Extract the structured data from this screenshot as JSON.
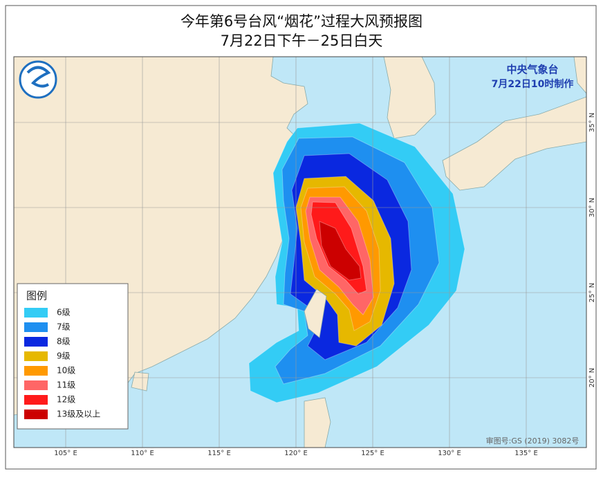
{
  "header": {
    "title": "今年第6号台风“烟花”过程大风预报图",
    "subtitle": "7月22日下午－25日白天"
  },
  "agency": {
    "name": "中央气象台",
    "issued": "7月22日10时制作"
  },
  "legend": {
    "title": "图例",
    "items": [
      {
        "label": "6级",
        "color": "#33ccf5"
      },
      {
        "label": "7级",
        "color": "#1e8ff0"
      },
      {
        "label": "8级",
        "color": "#0a28e0"
      },
      {
        "label": "9级",
        "color": "#e6b800"
      },
      {
        "label": "10级",
        "color": "#ff9900"
      },
      {
        "label": "11级",
        "color": "#ff6666"
      },
      {
        "label": "12级",
        "color": "#ff1a1a"
      },
      {
        "label": "13级及以上",
        "color": "#cc0000"
      }
    ]
  },
  "axes": {
    "lon_labels": [
      "105° E",
      "110° E",
      "115° E",
      "120° E",
      "125° E",
      "130° E",
      "135° E"
    ],
    "lat_labels": [
      "35° N",
      "30° N",
      "25° N",
      "20° N"
    ]
  },
  "review_number": "审图号:GS (2019) 3082号"
}
